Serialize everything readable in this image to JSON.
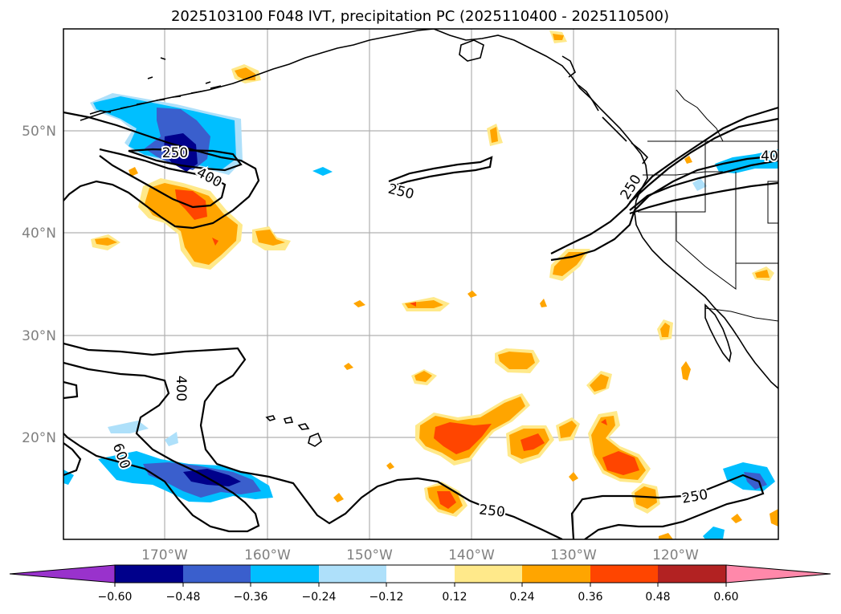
{
  "title": "2025103100 F048 IVT, precipitation PC (2025110400 - 2025110500)",
  "lon_ticks": [
    "170°W",
    "160°W",
    "150°W",
    "140°W",
    "130°W",
    "120°W"
  ],
  "lat_ticks": [
    "50°N",
    "40°N",
    "30°N",
    "20°N"
  ],
  "contour_labels": [
    "250",
    "400",
    "250",
    "250",
    "40",
    "400",
    "600",
    "250",
    "250"
  ],
  "colorbar": {
    "ticks": [
      "−0.60",
      "−0.48",
      "−0.36",
      "−0.24",
      "−0.12",
      "0.12",
      "0.24",
      "0.36",
      "0.48",
      "0.60"
    ],
    "colors": [
      "#9932cc",
      "#00008b",
      "#3a5fcd",
      "#00bfff",
      "#aee0fa",
      "#ffffff",
      "#ffe98a",
      "#ffa500",
      "#ff4500",
      "#b22222",
      "#ff88aa"
    ]
  },
  "colors": {
    "pos_light": "#ffe98a",
    "pos_mid": "#ffa500",
    "pos_high": "#ff4500",
    "neg_light": "#aee0fa",
    "neg_mid": "#00bfff",
    "neg_high": "#3a5fcd",
    "neg_max": "#00008b"
  }
}
